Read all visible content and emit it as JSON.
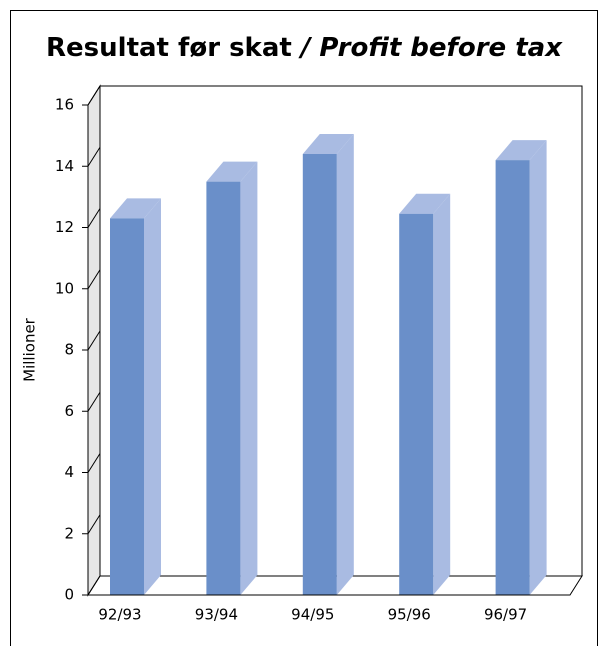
{
  "chart_data": {
    "type": "bar3d",
    "title": "Resultat før skat",
    "title_italic": "/ Profit before tax",
    "y_label": "Millioner",
    "categories": [
      "92/93",
      "93/94",
      "94/95",
      "95/96",
      "96/97"
    ],
    "values": [
      12.3,
      13.5,
      14.4,
      12.45,
      14.2
    ],
    "color": "#6a8fc9",
    "ylim": [
      0,
      16
    ],
    "yticks": [
      0,
      2,
      4,
      6,
      8,
      10,
      12,
      14,
      16
    ]
  }
}
